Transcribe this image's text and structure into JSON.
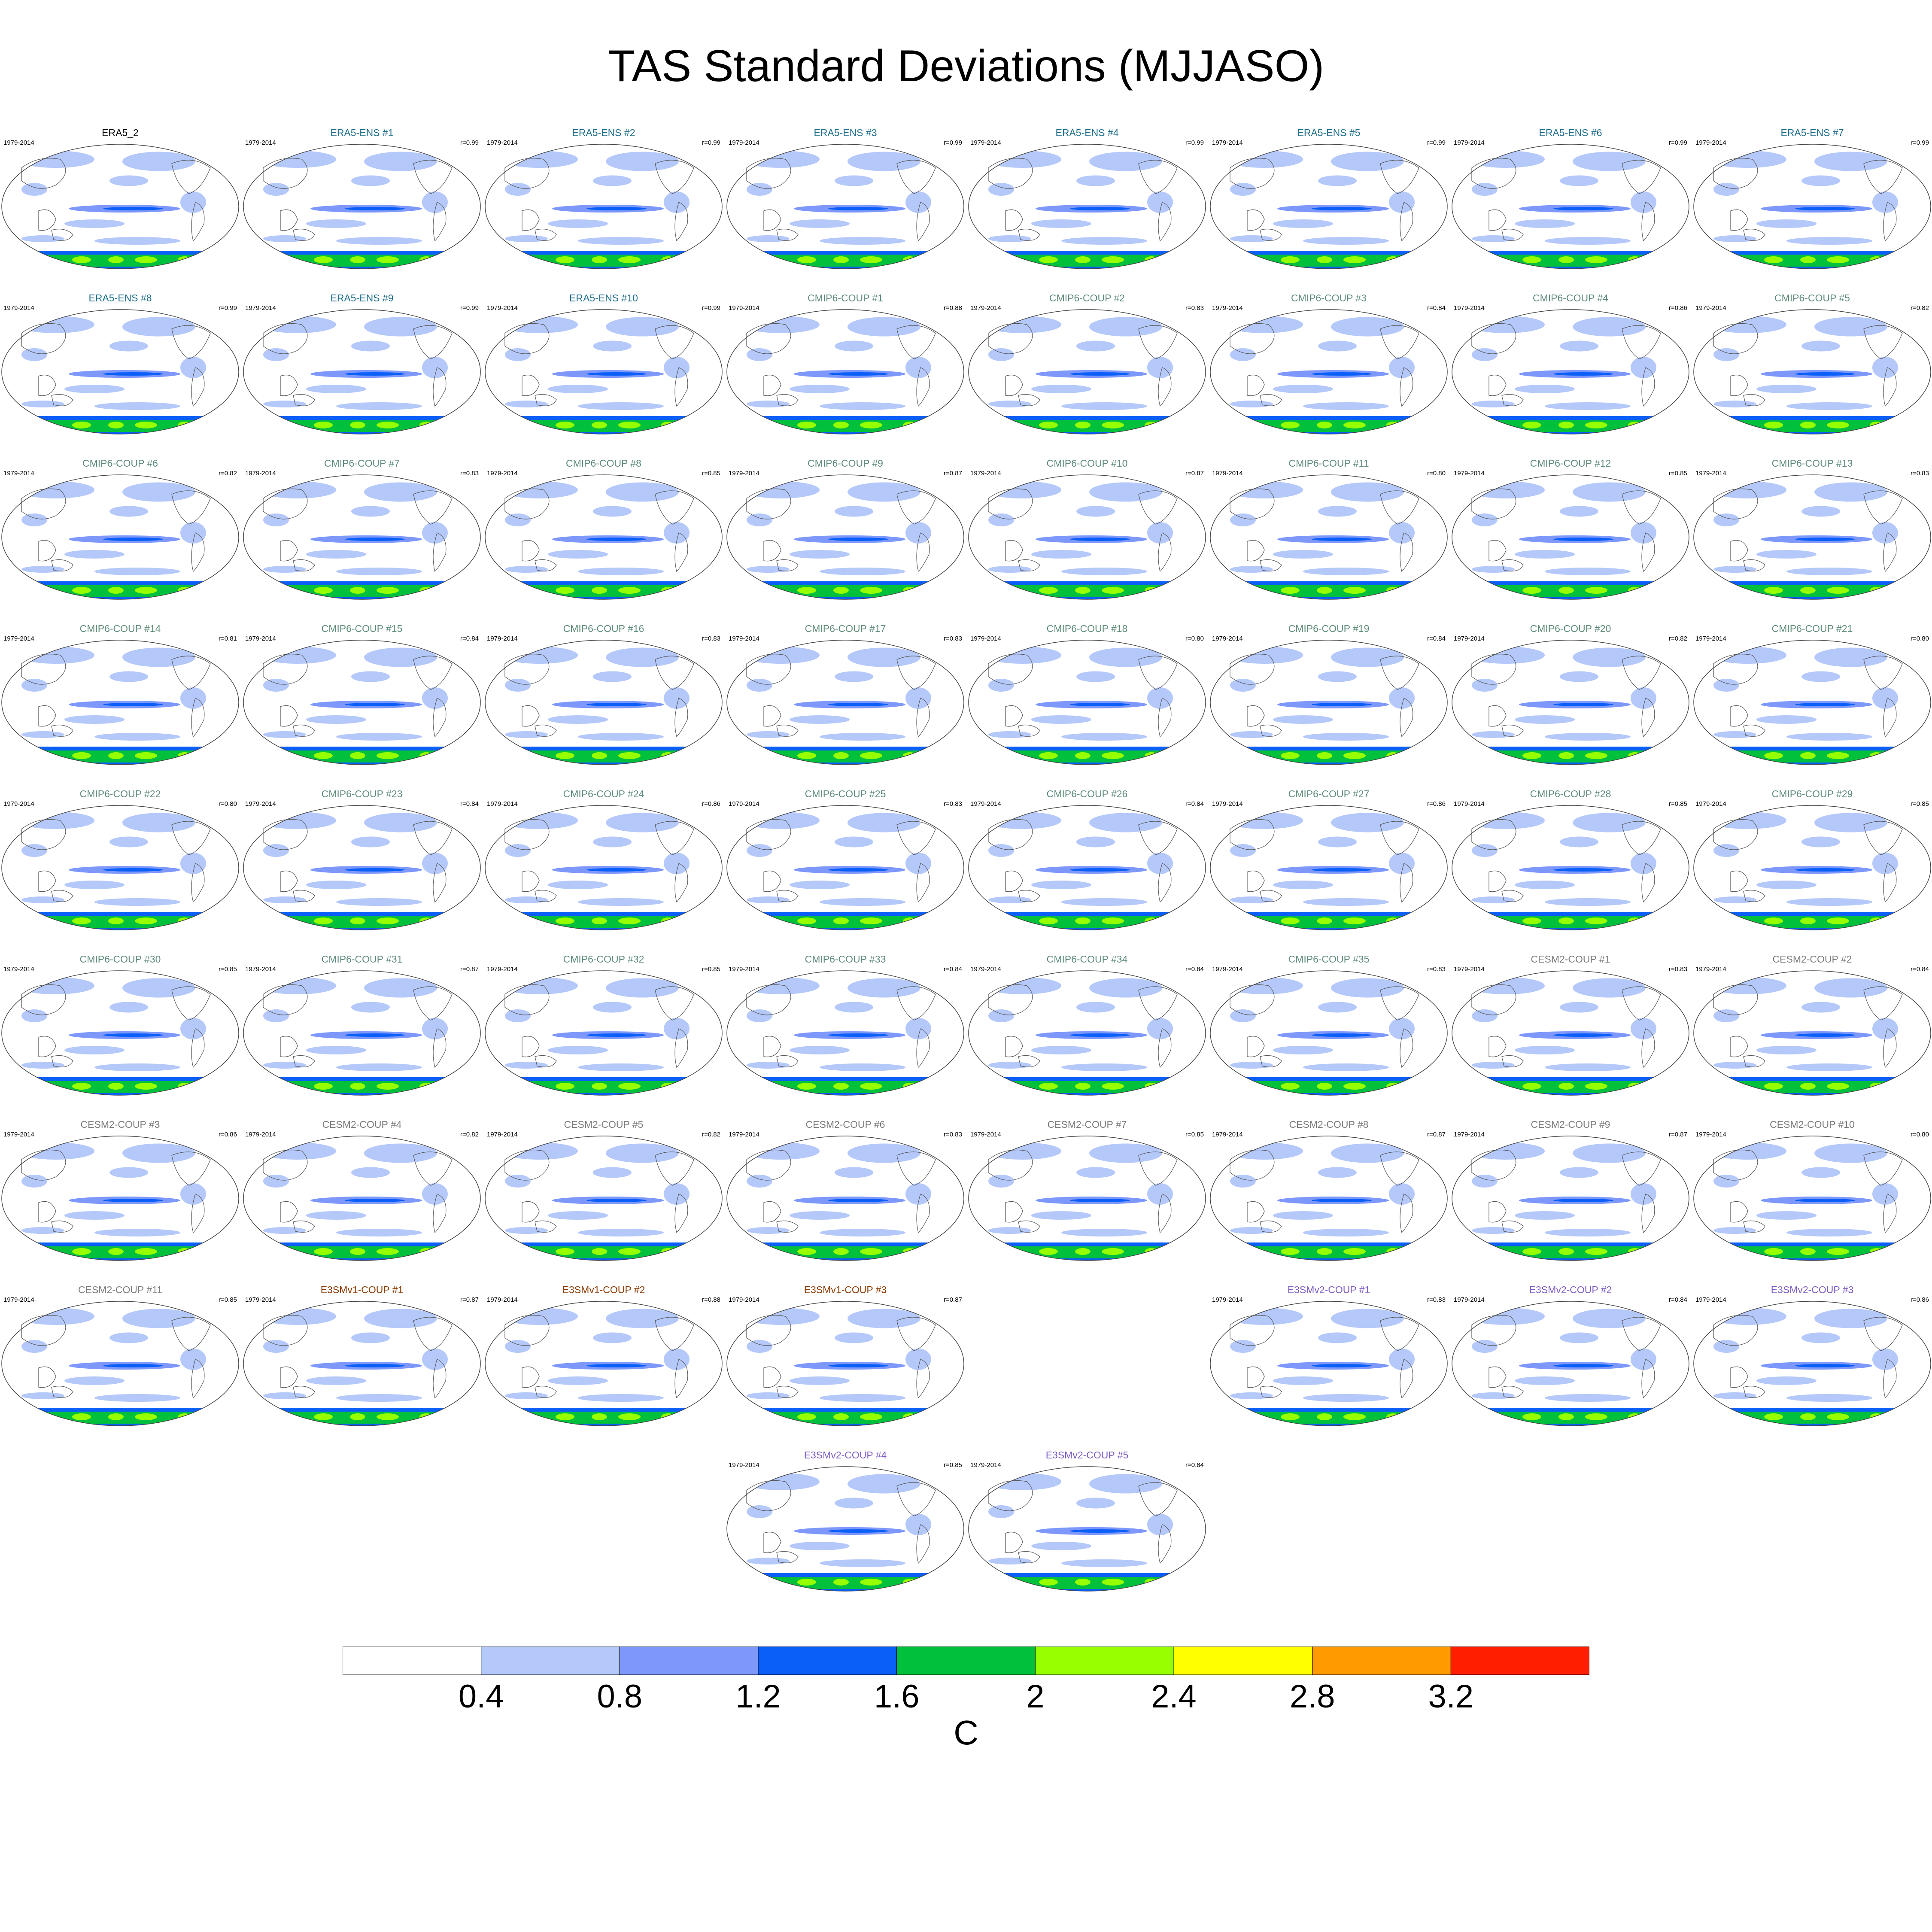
{
  "title": "TAS Standard Deviations (MJJASO)",
  "units": "C",
  "colorbar": {
    "colors": [
      "#ffffff",
      "#b4c8fa",
      "#7d98fa",
      "#0a5ff8",
      "#00c03c",
      "#96ff00",
      "#ffff00",
      "#ff9b00",
      "#ff1e00"
    ],
    "tick_labels": [
      "0.4",
      "0.8",
      "1.2",
      "1.6",
      "2",
      "2.4",
      "2.8",
      "3.2"
    ]
  },
  "group_colors": {
    "ERA5": "#000000",
    "ERA5-ENS": "#1f6e8c",
    "CMIP6-COUP": "#5e8c78",
    "CESM2-COUP": "#7b7b7b",
    "E3SMv1-COUP": "#8b3a00",
    "E3SMv2-COUP": "#7c5cc4"
  },
  "panels": [
    {
      "title": "ERA5_2",
      "group": "ERA5",
      "period": "1979-2014",
      "r": ""
    },
    {
      "title": "ERA5-ENS   #1",
      "group": "ERA5-ENS",
      "period": "1979-2014",
      "r": "r=0.99"
    },
    {
      "title": "ERA5-ENS   #2",
      "group": "ERA5-ENS",
      "period": "1979-2014",
      "r": "r=0.99"
    },
    {
      "title": "ERA5-ENS   #3",
      "group": "ERA5-ENS",
      "period": "1979-2014",
      "r": "r=0.99"
    },
    {
      "title": "ERA5-ENS   #4",
      "group": "ERA5-ENS",
      "period": "1979-2014",
      "r": "r=0.99"
    },
    {
      "title": "ERA5-ENS   #5",
      "group": "ERA5-ENS",
      "period": "1979-2014",
      "r": "r=0.99"
    },
    {
      "title": "ERA5-ENS   #6",
      "group": "ERA5-ENS",
      "period": "1979-2014",
      "r": "r=0.99"
    },
    {
      "title": "ERA5-ENS   #7",
      "group": "ERA5-ENS",
      "period": "1979-2014",
      "r": "r=0.99"
    },
    {
      "title": "ERA5-ENS   #8",
      "group": "ERA5-ENS",
      "period": "1979-2014",
      "r": "r=0.99"
    },
    {
      "title": "ERA5-ENS   #9",
      "group": "ERA5-ENS",
      "period": "1979-2014",
      "r": "r=0.99"
    },
    {
      "title": "ERA5-ENS   #10",
      "group": "ERA5-ENS",
      "period": "1979-2014",
      "r": "r=0.99"
    },
    {
      "title": "CMIP6-COUP  #1",
      "group": "CMIP6-COUP",
      "period": "1979-2014",
      "r": "r=0.88"
    },
    {
      "title": "CMIP6-COUP  #2",
      "group": "CMIP6-COUP",
      "period": "1979-2014",
      "r": "r=0.83"
    },
    {
      "title": "CMIP6-COUP  #3",
      "group": "CMIP6-COUP",
      "period": "1979-2014",
      "r": "r=0.84"
    },
    {
      "title": "CMIP6-COUP  #4",
      "group": "CMIP6-COUP",
      "period": "1979-2014",
      "r": "r=0.86"
    },
    {
      "title": "CMIP6-COUP  #5",
      "group": "CMIP6-COUP",
      "period": "1979-2014",
      "r": "r=0.82"
    },
    {
      "title": "CMIP6-COUP  #6",
      "group": "CMIP6-COUP",
      "period": "1979-2014",
      "r": "r=0.82"
    },
    {
      "title": "CMIP6-COUP  #7",
      "group": "CMIP6-COUP",
      "period": "1979-2014",
      "r": "r=0.83"
    },
    {
      "title": "CMIP6-COUP  #8",
      "group": "CMIP6-COUP",
      "period": "1979-2014",
      "r": "r=0.85"
    },
    {
      "title": "CMIP6-COUP  #9",
      "group": "CMIP6-COUP",
      "period": "1979-2014",
      "r": "r=0.87"
    },
    {
      "title": "CMIP6-COUP  #10",
      "group": "CMIP6-COUP",
      "period": "1979-2014",
      "r": "r=0.87"
    },
    {
      "title": "CMIP6-COUP  #11",
      "group": "CMIP6-COUP",
      "period": "1979-2014",
      "r": "r=0.80"
    },
    {
      "title": "CMIP6-COUP  #12",
      "group": "CMIP6-COUP",
      "period": "1979-2014",
      "r": "r=0.85"
    },
    {
      "title": "CMIP6-COUP  #13",
      "group": "CMIP6-COUP",
      "period": "1979-2014",
      "r": "r=0.83"
    },
    {
      "title": "CMIP6-COUP  #14",
      "group": "CMIP6-COUP",
      "period": "1979-2014",
      "r": "r=0.81"
    },
    {
      "title": "CMIP6-COUP  #15",
      "group": "CMIP6-COUP",
      "period": "1979-2014",
      "r": "r=0.84"
    },
    {
      "title": "CMIP6-COUP  #16",
      "group": "CMIP6-COUP",
      "period": "1979-2014",
      "r": "r=0.83"
    },
    {
      "title": "CMIP6-COUP  #17",
      "group": "CMIP6-COUP",
      "period": "1979-2014",
      "r": "r=0.83"
    },
    {
      "title": "CMIP6-COUP  #18",
      "group": "CMIP6-COUP",
      "period": "1979-2014",
      "r": "r=0.80"
    },
    {
      "title": "CMIP6-COUP  #19",
      "group": "CMIP6-COUP",
      "period": "1979-2014",
      "r": "r=0.84"
    },
    {
      "title": "CMIP6-COUP  #20",
      "group": "CMIP6-COUP",
      "period": "1979-2014",
      "r": "r=0.82"
    },
    {
      "title": "CMIP6-COUP  #21",
      "group": "CMIP6-COUP",
      "period": "1979-2014",
      "r": "r=0.80"
    },
    {
      "title": "CMIP6-COUP  #22",
      "group": "CMIP6-COUP",
      "period": "1979-2014",
      "r": "r=0.80"
    },
    {
      "title": "CMIP6-COUP  #23",
      "group": "CMIP6-COUP",
      "period": "1979-2014",
      "r": "r=0.84"
    },
    {
      "title": "CMIP6-COUP  #24",
      "group": "CMIP6-COUP",
      "period": "1979-2014",
      "r": "r=0.86"
    },
    {
      "title": "CMIP6-COUP  #25",
      "group": "CMIP6-COUP",
      "period": "1979-2014",
      "r": "r=0.83"
    },
    {
      "title": "CMIP6-COUP  #26",
      "group": "CMIP6-COUP",
      "period": "1979-2014",
      "r": "r=0.84"
    },
    {
      "title": "CMIP6-COUP  #27",
      "group": "CMIP6-COUP",
      "period": "1979-2014",
      "r": "r=0.86"
    },
    {
      "title": "CMIP6-COUP  #28",
      "group": "CMIP6-COUP",
      "period": "1979-2014",
      "r": "r=0.85"
    },
    {
      "title": "CMIP6-COUP  #29",
      "group": "CMIP6-COUP",
      "period": "1979-2014",
      "r": "r=0.85"
    },
    {
      "title": "CMIP6-COUP  #30",
      "group": "CMIP6-COUP",
      "period": "1979-2014",
      "r": "r=0.85"
    },
    {
      "title": "CMIP6-COUP  #31",
      "group": "CMIP6-COUP",
      "period": "1979-2014",
      "r": "r=0.87"
    },
    {
      "title": "CMIP6-COUP  #32",
      "group": "CMIP6-COUP",
      "period": "1979-2014",
      "r": "r=0.85"
    },
    {
      "title": "CMIP6-COUP  #33",
      "group": "CMIP6-COUP",
      "period": "1979-2014",
      "r": "r=0.84"
    },
    {
      "title": "CMIP6-COUP  #34",
      "group": "CMIP6-COUP",
      "period": "1979-2014",
      "r": "r=0.84"
    },
    {
      "title": "CMIP6-COUP  #35",
      "group": "CMIP6-COUP",
      "period": "1979-2014",
      "r": "r=0.83"
    },
    {
      "title": "CESM2-COUP  #1",
      "group": "CESM2-COUP",
      "period": "1979-2014",
      "r": "r=0.83"
    },
    {
      "title": "CESM2-COUP  #2",
      "group": "CESM2-COUP",
      "period": "1979-2014",
      "r": "r=0.84"
    },
    {
      "title": "CESM2-COUP  #3",
      "group": "CESM2-COUP",
      "period": "1979-2014",
      "r": "r=0.86"
    },
    {
      "title": "CESM2-COUP  #4",
      "group": "CESM2-COUP",
      "period": "1979-2014",
      "r": "r=0.82"
    },
    {
      "title": "CESM2-COUP  #5",
      "group": "CESM2-COUP",
      "period": "1979-2014",
      "r": "r=0.82"
    },
    {
      "title": "CESM2-COUP  #6",
      "group": "CESM2-COUP",
      "period": "1979-2014",
      "r": "r=0.83"
    },
    {
      "title": "CESM2-COUP  #7",
      "group": "CESM2-COUP",
      "period": "1979-2014",
      "r": "r=0.85"
    },
    {
      "title": "CESM2-COUP  #8",
      "group": "CESM2-COUP",
      "period": "1979-2014",
      "r": "r=0.87"
    },
    {
      "title": "CESM2-COUP  #9",
      "group": "CESM2-COUP",
      "period": "1979-2014",
      "r": "r=0.87"
    },
    {
      "title": "CESM2-COUP  #10",
      "group": "CESM2-COUP",
      "period": "1979-2014",
      "r": "r=0.80"
    },
    {
      "title": "CESM2-COUP  #11",
      "group": "CESM2-COUP",
      "period": "1979-2014",
      "r": "r=0.85"
    },
    {
      "title": "E3SMv1-COUP #1",
      "group": "E3SMv1-COUP",
      "period": "1979-2014",
      "r": "r=0.87"
    },
    {
      "title": "E3SMv1-COUP #2",
      "group": "E3SMv1-COUP",
      "period": "1979-2014",
      "r": "r=0.88"
    },
    {
      "title": "E3SMv1-COUP #3",
      "group": "E3SMv1-COUP",
      "period": "1979-2014",
      "r": "r=0.87"
    },
    {
      "title": "E3SMv2-COUP #1",
      "group": "E3SMv2-COUP",
      "period": "1979-2014",
      "r": "r=0.83"
    },
    {
      "title": "E3SMv2-COUP #2",
      "group": "E3SMv2-COUP",
      "period": "1979-2014",
      "r": "r=0.84"
    },
    {
      "title": "E3SMv2-COUP #3",
      "group": "E3SMv2-COUP",
      "period": "1979-2014",
      "r": "r=0.86"
    },
    {
      "title": "E3SMv2-COUP #4",
      "group": "E3SMv2-COUP",
      "period": "1979-2014",
      "r": "r=0.85"
    },
    {
      "title": "E3SMv2-COUP #5",
      "group": "E3SMv2-COUP",
      "period": "1979-2014",
      "r": "r=0.84"
    }
  ]
}
